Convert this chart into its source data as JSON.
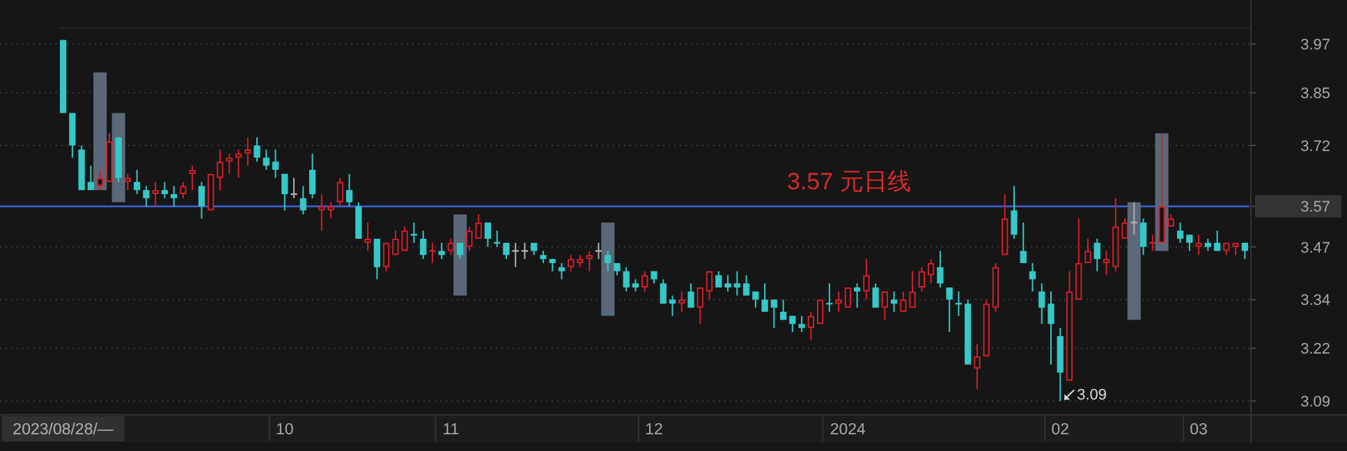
{
  "chart_data": {
    "type": "candlestick",
    "categories": [
      "2023/08/28/—",
      null,
      null,
      null,
      null,
      null,
      null,
      null,
      null,
      null,
      null,
      null,
      null,
      null,
      null,
      null,
      null,
      null,
      null,
      null,
      null,
      null,
      null,
      null,
      "10",
      null,
      null,
      null,
      null,
      null,
      null,
      null,
      null,
      null,
      null,
      null,
      null,
      null,
      null,
      null,
      null,
      null,
      "11",
      null,
      null,
      null,
      null,
      null,
      null,
      null,
      null,
      null,
      null,
      null,
      null,
      null,
      null,
      null,
      null,
      null,
      null,
      null,
      null,
      null,
      "12",
      null,
      null,
      null,
      null,
      null,
      null,
      null,
      null,
      null,
      null,
      null,
      null,
      null,
      null,
      null,
      null,
      null,
      null,
      null,
      null,
      "2024",
      null,
      null,
      null,
      null,
      null,
      null,
      null,
      null,
      null,
      null,
      null,
      null,
      null,
      null,
      null,
      null,
      null,
      null,
      null,
      null,
      null,
      null,
      "02",
      null,
      null,
      null,
      null,
      null,
      null,
      null,
      null,
      null,
      null,
      null,
      null,
      null,
      null,
      "03",
      null,
      null,
      null,
      null,
      null
    ],
    "ohlc": [
      [
        3.98,
        3.98,
        3.8,
        3.8
      ],
      [
        3.8,
        3.8,
        3.69,
        3.72
      ],
      [
        3.71,
        3.72,
        3.61,
        3.61
      ],
      [
        3.63,
        3.67,
        3.61,
        3.61
      ],
      [
        3.62,
        3.66,
        3.61,
        3.64
      ],
      [
        3.63,
        3.75,
        3.63,
        3.73
      ],
      [
        3.74,
        3.74,
        3.63,
        3.64
      ],
      [
        3.63,
        3.65,
        3.61,
        3.64
      ],
      [
        3.63,
        3.66,
        3.6,
        3.61
      ],
      [
        3.61,
        3.62,
        3.57,
        3.59
      ],
      [
        3.6,
        3.63,
        3.57,
        3.61
      ],
      [
        3.61,
        3.63,
        3.59,
        3.6
      ],
      [
        3.6,
        3.62,
        3.57,
        3.59
      ],
      [
        3.6,
        3.63,
        3.59,
        3.62
      ],
      [
        3.65,
        3.67,
        3.61,
        3.66
      ],
      [
        3.62,
        3.63,
        3.54,
        3.57
      ],
      [
        3.56,
        3.65,
        3.56,
        3.65
      ],
      [
        3.64,
        3.71,
        3.61,
        3.68
      ],
      [
        3.68,
        3.7,
        3.65,
        3.69
      ],
      [
        3.69,
        3.71,
        3.64,
        3.7
      ],
      [
        3.7,
        3.74,
        3.67,
        3.71
      ],
      [
        3.72,
        3.74,
        3.68,
        3.69
      ],
      [
        3.69,
        3.71,
        3.66,
        3.67
      ],
      [
        3.68,
        3.71,
        3.64,
        3.66
      ],
      [
        3.65,
        3.65,
        3.56,
        3.6
      ],
      [
        3.6,
        3.64,
        3.59,
        3.6
      ],
      [
        3.59,
        3.62,
        3.55,
        3.56
      ],
      [
        3.66,
        3.7,
        3.59,
        3.6
      ],
      [
        3.56,
        3.6,
        3.51,
        3.57
      ],
      [
        3.56,
        3.58,
        3.54,
        3.57
      ],
      [
        3.58,
        3.64,
        3.57,
        3.63
      ],
      [
        3.61,
        3.65,
        3.57,
        3.58
      ],
      [
        3.57,
        3.58,
        3.49,
        3.49
      ],
      [
        3.48,
        3.53,
        3.46,
        3.49
      ],
      [
        3.49,
        3.49,
        3.39,
        3.42
      ],
      [
        3.42,
        3.48,
        3.41,
        3.48
      ],
      [
        3.45,
        3.51,
        3.45,
        3.49
      ],
      [
        3.46,
        3.52,
        3.46,
        3.51
      ],
      [
        3.5,
        3.53,
        3.48,
        3.5
      ],
      [
        3.49,
        3.51,
        3.44,
        3.45
      ],
      [
        3.46,
        3.48,
        3.43,
        3.46
      ],
      [
        3.46,
        3.48,
        3.44,
        3.45
      ],
      [
        3.46,
        3.49,
        3.45,
        3.48
      ],
      [
        3.48,
        3.48,
        3.44,
        3.45
      ],
      [
        3.47,
        3.52,
        3.46,
        3.51
      ],
      [
        3.49,
        3.55,
        3.49,
        3.53
      ],
      [
        3.53,
        3.53,
        3.47,
        3.49
      ],
      [
        3.48,
        3.51,
        3.47,
        3.48
      ],
      [
        3.48,
        3.48,
        3.44,
        3.45
      ],
      [
        3.46,
        3.48,
        3.42,
        3.46
      ],
      [
        3.46,
        3.48,
        3.44,
        3.46
      ],
      [
        3.48,
        3.48,
        3.45,
        3.46
      ],
      [
        3.45,
        3.46,
        3.43,
        3.44
      ],
      [
        3.44,
        3.44,
        3.41,
        3.43
      ],
      [
        3.42,
        3.43,
        3.39,
        3.41
      ],
      [
        3.42,
        3.45,
        3.41,
        3.44
      ],
      [
        3.43,
        3.45,
        3.42,
        3.44
      ],
      [
        3.44,
        3.46,
        3.41,
        3.45
      ],
      [
        3.46,
        3.48,
        3.44,
        3.46
      ],
      [
        3.45,
        3.46,
        3.41,
        3.43
      ],
      [
        3.43,
        3.43,
        3.4,
        3.41
      ],
      [
        3.41,
        3.42,
        3.36,
        3.37
      ],
      [
        3.38,
        3.39,
        3.36,
        3.37
      ],
      [
        3.37,
        3.41,
        3.36,
        3.4
      ],
      [
        3.41,
        3.41,
        3.38,
        3.39
      ],
      [
        3.38,
        3.39,
        3.33,
        3.33
      ],
      [
        3.34,
        3.35,
        3.3,
        3.33
      ],
      [
        3.33,
        3.36,
        3.31,
        3.34
      ],
      [
        3.36,
        3.38,
        3.32,
        3.32
      ],
      [
        3.32,
        3.37,
        3.28,
        3.37
      ],
      [
        3.36,
        3.41,
        3.34,
        3.41
      ],
      [
        3.4,
        3.41,
        3.37,
        3.37
      ],
      [
        3.38,
        3.4,
        3.36,
        3.37
      ],
      [
        3.38,
        3.41,
        3.35,
        3.37
      ],
      [
        3.38,
        3.4,
        3.35,
        3.35
      ],
      [
        3.36,
        3.36,
        3.32,
        3.34
      ],
      [
        3.34,
        3.38,
        3.31,
        3.31
      ],
      [
        3.34,
        3.34,
        3.27,
        3.32
      ],
      [
        3.31,
        3.34,
        3.29,
        3.29
      ],
      [
        3.3,
        3.3,
        3.26,
        3.28
      ],
      [
        3.28,
        3.3,
        3.26,
        3.27
      ],
      [
        3.27,
        3.31,
        3.24,
        3.3
      ],
      [
        3.28,
        3.34,
        3.28,
        3.34
      ],
      [
        3.33,
        3.38,
        3.31,
        3.33
      ],
      [
        3.33,
        3.36,
        3.31,
        3.34
      ],
      [
        3.32,
        3.37,
        3.32,
        3.37
      ],
      [
        3.37,
        3.38,
        3.32,
        3.36
      ],
      [
        3.36,
        3.44,
        3.34,
        3.4
      ],
      [
        3.37,
        3.38,
        3.32,
        3.32
      ],
      [
        3.32,
        3.36,
        3.29,
        3.36
      ],
      [
        3.34,
        3.36,
        3.31,
        3.33
      ],
      [
        3.31,
        3.36,
        3.31,
        3.34
      ],
      [
        3.32,
        3.41,
        3.32,
        3.36
      ],
      [
        3.37,
        3.42,
        3.36,
        3.41
      ],
      [
        3.4,
        3.44,
        3.38,
        3.43
      ],
      [
        3.42,
        3.46,
        3.37,
        3.38
      ],
      [
        3.37,
        3.37,
        3.26,
        3.34
      ],
      [
        3.33,
        3.36,
        3.3,
        3.33
      ],
      [
        3.33,
        3.34,
        3.18,
        3.18
      ],
      [
        3.17,
        3.23,
        3.12,
        3.2
      ],
      [
        3.2,
        3.34,
        3.2,
        3.33
      ],
      [
        3.32,
        3.43,
        3.31,
        3.42
      ],
      [
        3.45,
        3.6,
        3.45,
        3.54
      ],
      [
        3.56,
        3.62,
        3.49,
        3.5
      ],
      [
        3.46,
        3.53,
        3.43,
        3.43
      ],
      [
        3.41,
        3.43,
        3.36,
        3.39
      ],
      [
        3.36,
        3.38,
        3.28,
        3.32
      ],
      [
        3.33,
        3.36,
        3.18,
        3.28
      ],
      [
        3.25,
        3.27,
        3.09,
        3.16
      ],
      [
        3.14,
        3.41,
        3.14,
        3.36
      ],
      [
        3.34,
        3.54,
        3.34,
        3.43
      ],
      [
        3.43,
        3.49,
        3.43,
        3.46
      ],
      [
        3.48,
        3.49,
        3.41,
        3.44
      ],
      [
        3.43,
        3.46,
        3.4,
        3.44
      ],
      [
        3.42,
        3.59,
        3.41,
        3.52
      ],
      [
        3.49,
        3.54,
        3.49,
        3.53
      ],
      [
        3.53,
        3.58,
        3.5,
        3.53
      ],
      [
        3.53,
        3.54,
        3.45,
        3.47
      ],
      [
        3.48,
        3.5,
        3.46,
        3.48
      ],
      [
        3.48,
        3.75,
        3.48,
        3.57
      ],
      [
        3.52,
        3.55,
        3.52,
        3.54
      ],
      [
        3.51,
        3.53,
        3.48,
        3.49
      ],
      [
        3.5,
        3.5,
        3.46,
        3.48
      ],
      [
        3.47,
        3.5,
        3.45,
        3.48
      ],
      [
        3.48,
        3.49,
        3.46,
        3.47
      ],
      [
        3.48,
        3.51,
        3.46,
        3.46
      ],
      [
        3.46,
        3.48,
        3.45,
        3.48
      ],
      [
        3.47,
        3.48,
        3.45,
        3.48
      ],
      [
        3.48,
        3.48,
        3.44,
        3.46
      ]
    ],
    "colors": [
      "#36c8c8",
      "#36c8c8",
      "#36c8c8",
      "#36c8c8",
      "#d0202a",
      "#d0202a",
      "#36c8c8",
      "#d0202a",
      "#36c8c8",
      "#36c8c8",
      "#d0202a",
      "#36c8c8",
      "#36c8c8",
      "#d0202a",
      "#d0202a",
      "#36c8c8",
      "#d0202a",
      "#d0202a",
      "#d0202a",
      "#d0202a",
      "#d0202a",
      "#36c8c8",
      "#36c8c8",
      "#36c8c8",
      "#36c8c8",
      "#b0b0b0",
      "#36c8c8",
      "#36c8c8",
      "#d0202a",
      "#d0202a",
      "#d0202a",
      "#36c8c8",
      "#36c8c8",
      "#d0202a",
      "#36c8c8",
      "#d0202a",
      "#d0202a",
      "#d0202a",
      "#36c8c8",
      "#36c8c8",
      "#d0202a",
      "#36c8c8",
      "#d0202a",
      "#36c8c8",
      "#d0202a",
      "#d0202a",
      "#36c8c8",
      "#36c8c8",
      "#36c8c8",
      "#b0b0b0",
      "#b0b0b0",
      "#36c8c8",
      "#36c8c8",
      "#36c8c8",
      "#36c8c8",
      "#d0202a",
      "#d0202a",
      "#d0202a",
      "#b0b0b0",
      "#36c8c8",
      "#36c8c8",
      "#36c8c8",
      "#36c8c8",
      "#d0202a",
      "#36c8c8",
      "#36c8c8",
      "#36c8c8",
      "#d0202a",
      "#36c8c8",
      "#d0202a",
      "#d0202a",
      "#36c8c8",
      "#36c8c8",
      "#36c8c8",
      "#36c8c8",
      "#36c8c8",
      "#36c8c8",
      "#36c8c8",
      "#36c8c8",
      "#36c8c8",
      "#36c8c8",
      "#d0202a",
      "#d0202a",
      "#36c8c8",
      "#d0202a",
      "#d0202a",
      "#36c8c8",
      "#d0202a",
      "#36c8c8",
      "#d0202a",
      "#36c8c8",
      "#d0202a",
      "#d0202a",
      "#d0202a",
      "#d0202a",
      "#36c8c8",
      "#36c8c8",
      "#36c8c8",
      "#36c8c8",
      "#d0202a",
      "#d0202a",
      "#d0202a",
      "#d0202a",
      "#36c8c8",
      "#36c8c8",
      "#36c8c8",
      "#36c8c8",
      "#36c8c8",
      "#36c8c8",
      "#d0202a",
      "#d0202a",
      "#d0202a",
      "#36c8c8",
      "#d0202a",
      "#d0202a",
      "#d0202a",
      "#b0b0b0",
      "#36c8c8",
      "#d0202a",
      "#d0202a",
      "#d0202a",
      "#36c8c8",
      "#36c8c8",
      "#d0202a",
      "#36c8c8",
      "#36c8c8",
      "#d0202a",
      "#d0202a",
      "#36c8c8"
    ],
    "series": [
      {
        "type": "bar",
        "color": "#5a6878",
        "values": [
          null,
          null,
          null,
          null,
          0.29,
          null,
          0.22,
          null,
          null,
          null,
          null,
          null,
          null,
          null,
          null,
          null,
          null,
          null,
          null,
          null,
          null,
          null,
          null,
          null,
          null,
          null,
          null,
          null,
          null,
          null,
          null,
          null,
          null,
          null,
          null,
          null,
          null,
          null,
          null,
          null,
          null,
          null,
          null,
          0.2,
          null,
          null,
          null,
          null,
          null,
          null,
          null,
          null,
          null,
          null,
          null,
          null,
          null,
          null,
          null,
          0.23,
          null,
          null,
          null,
          null,
          null,
          null,
          null,
          null,
          null,
          null,
          null,
          null,
          null,
          null,
          null,
          null,
          null,
          null,
          null,
          null,
          null,
          null,
          null,
          null,
          null,
          null,
          null,
          null,
          null,
          null,
          null,
          null,
          null,
          null,
          null,
          null,
          null,
          null,
          null,
          null,
          null,
          null,
          null,
          null,
          null,
          null,
          null,
          null,
          null,
          null,
          null,
          null,
          null,
          null,
          null,
          null,
          0.29,
          null,
          null,
          0.29,
          null,
          null,
          null,
          null,
          null,
          null,
          null,
          null,
          null
        ],
        "base": [
          null,
          null,
          null,
          null,
          3.61,
          null,
          3.58,
          null,
          null,
          null,
          null,
          null,
          null,
          null,
          null,
          null,
          null,
          null,
          null,
          null,
          null,
          null,
          null,
          null,
          null,
          null,
          null,
          null,
          null,
          null,
          null,
          null,
          null,
          null,
          null,
          null,
          null,
          null,
          null,
          null,
          null,
          null,
          null,
          3.35,
          null,
          null,
          null,
          null,
          null,
          null,
          null,
          null,
          null,
          null,
          null,
          null,
          null,
          null,
          null,
          3.3,
          null,
          null,
          null,
          null,
          null,
          null,
          null,
          null,
          null,
          null,
          null,
          null,
          null,
          null,
          null,
          null,
          null,
          null,
          null,
          null,
          null,
          null,
          null,
          null,
          null,
          null,
          null,
          null,
          null,
          null,
          null,
          null,
          null,
          null,
          null,
          null,
          null,
          null,
          null,
          null,
          null,
          null,
          null,
          null,
          null,
          null,
          null,
          null,
          null,
          null,
          null,
          null,
          null,
          null,
          null,
          null,
          3.29,
          null,
          null,
          3.46,
          null,
          null,
          null,
          null,
          null,
          null,
          null,
          null,
          null
        ]
      }
    ],
    "ylim": [
      3.056,
      4.01
    ],
    "yticks": [
      3.09,
      3.22,
      3.34,
      3.47,
      3.57,
      3.72,
      3.85,
      3.97
    ],
    "grid": "y",
    "ref_lines": [
      {
        "axis": "y",
        "value": 3.57,
        "label": "3.57 元日线",
        "color": "#3f63d8"
      }
    ],
    "annotations": [
      "3.09"
    ]
  }
}
